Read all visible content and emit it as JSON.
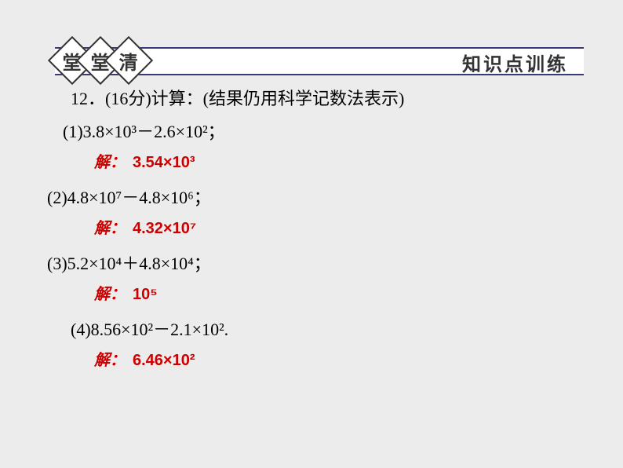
{
  "header": {
    "diamonds": [
      "堂",
      "堂",
      "清"
    ],
    "right_text": "知识点训练"
  },
  "problem": {
    "title_prefix": "12．(16分)计算：(结果仍用科学记数法表示)",
    "items": [
      {
        "question": "(1)3.8×10³－2.6×10²；",
        "answer_label": "解：",
        "answer_value": "3.54×10³"
      },
      {
        "question": "(2)4.8×10⁷－4.8×10⁶；",
        "answer_label": "解：",
        "answer_value": "4.32×10⁷"
      },
      {
        "question": "(3)5.2×10⁴＋4.8×10⁴；",
        "answer_label": "解：",
        "answer_value": "10⁵"
      },
      {
        "question": "(4)8.56×10²－2.1×10².",
        "answer_label": "解：",
        "answer_value": "6.46×10²"
      }
    ]
  },
  "colors": {
    "background": "#ececec",
    "header_bg": "#ffffff",
    "header_border": "#3a3a7a",
    "text": "#000000",
    "answer": "#cc0000",
    "diamond_border": "#333333"
  },
  "typography": {
    "body_font": "SimSun",
    "header_font": "KaiTi",
    "answer_font": "KaiTi",
    "problem_fontsize": 22,
    "answer_fontsize": 20,
    "header_fontsize": 24
  }
}
